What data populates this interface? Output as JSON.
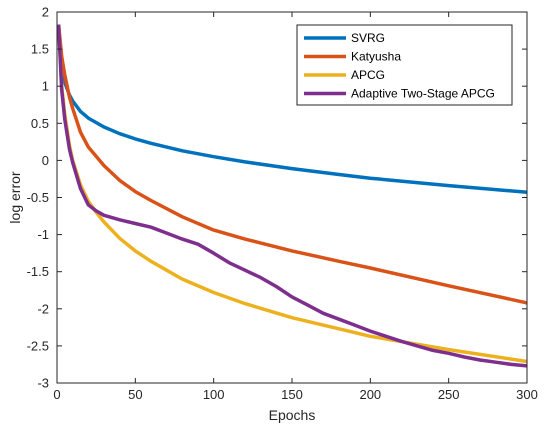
{
  "chart_data": {
    "type": "line",
    "title": "",
    "xlabel": "Epochs",
    "ylabel": "log error",
    "xlim": [
      0,
      300
    ],
    "ylim": [
      -3,
      2
    ],
    "xticks": [
      0,
      50,
      100,
      150,
      200,
      250,
      300
    ],
    "yticks": [
      -3,
      -2.5,
      -2,
      -1.5,
      -1,
      -0.5,
      0,
      0.5,
      1,
      1.5,
      2
    ],
    "grid": false,
    "legend_position": "top-right",
    "series": [
      {
        "name": "SVRG",
        "color": "#0072BD",
        "x": [
          1,
          3,
          5,
          8,
          10,
          15,
          20,
          30,
          40,
          50,
          60,
          80,
          100,
          120,
          150,
          180,
          200,
          250,
          300
        ],
        "y": [
          1.83,
          1.25,
          1.05,
          0.88,
          0.8,
          0.66,
          0.57,
          0.45,
          0.36,
          0.29,
          0.23,
          0.13,
          0.05,
          -0.02,
          -0.11,
          -0.19,
          -0.24,
          -0.34,
          -0.43
        ]
      },
      {
        "name": "Katyusha",
        "color": "#D95319",
        "x": [
          1,
          3,
          5,
          8,
          10,
          15,
          20,
          30,
          40,
          50,
          60,
          80,
          100,
          120,
          150,
          180,
          200,
          250,
          300
        ],
        "y": [
          1.83,
          1.4,
          1.15,
          0.85,
          0.7,
          0.38,
          0.18,
          -0.07,
          -0.27,
          -0.42,
          -0.54,
          -0.76,
          -0.94,
          -1.06,
          -1.22,
          -1.36,
          -1.45,
          -1.69,
          -1.92
        ]
      },
      {
        "name": "APCG",
        "color": "#EDB120",
        "x": [
          1,
          3,
          5,
          8,
          10,
          15,
          20,
          25,
          30,
          40,
          50,
          60,
          80,
          100,
          120,
          150,
          180,
          200,
          250,
          300
        ],
        "y": [
          1.83,
          1.0,
          0.62,
          0.2,
          0.0,
          -0.33,
          -0.55,
          -0.7,
          -0.83,
          -1.05,
          -1.22,
          -1.36,
          -1.6,
          -1.78,
          -1.93,
          -2.12,
          -2.27,
          -2.37,
          -2.55,
          -2.71
        ]
      },
      {
        "name": "Adaptive Two-Stage APCG",
        "color": "#7E2F8E",
        "x": [
          1,
          3,
          5,
          8,
          10,
          15,
          20,
          25,
          30,
          40,
          50,
          60,
          70,
          80,
          90,
          100,
          110,
          120,
          130,
          140,
          150,
          160,
          170,
          180,
          190,
          200,
          210,
          220,
          230,
          240,
          250,
          260,
          270,
          280,
          290,
          300
        ],
        "y": [
          1.83,
          0.95,
          0.55,
          0.15,
          -0.03,
          -0.38,
          -0.6,
          -0.68,
          -0.74,
          -0.8,
          -0.85,
          -0.9,
          -0.98,
          -1.06,
          -1.13,
          -1.25,
          -1.38,
          -1.48,
          -1.58,
          -1.7,
          -1.84,
          -1.95,
          -2.06,
          -2.14,
          -2.22,
          -2.3,
          -2.37,
          -2.44,
          -2.5,
          -2.56,
          -2.6,
          -2.65,
          -2.69,
          -2.72,
          -2.75,
          -2.77
        ]
      }
    ]
  }
}
